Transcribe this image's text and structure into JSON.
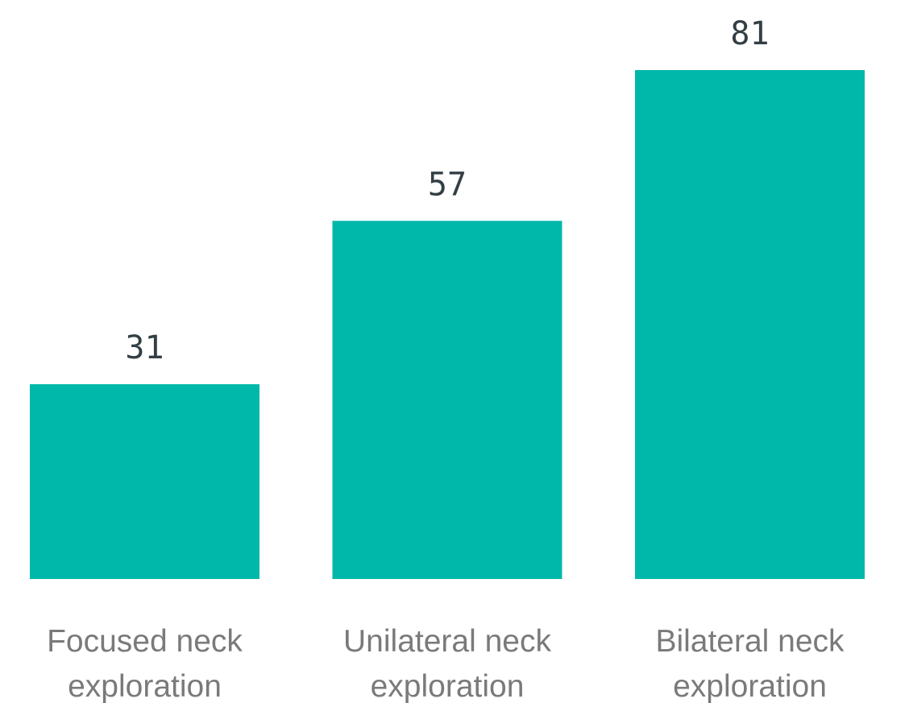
{
  "chart_data": {
    "type": "bar",
    "categories": [
      [
        "Focused neck",
        "exploration"
      ],
      [
        "Unilateral neck",
        "exploration"
      ],
      [
        "Bilateral neck",
        "exploration"
      ]
    ],
    "values": [
      31,
      57,
      81
    ],
    "ylim": [
      0,
      81
    ],
    "grid": false,
    "legend": "none",
    "colors": {
      "bar": "#00b8aa",
      "value_label": "#333f44",
      "category_label": "#7a7a7a"
    }
  }
}
